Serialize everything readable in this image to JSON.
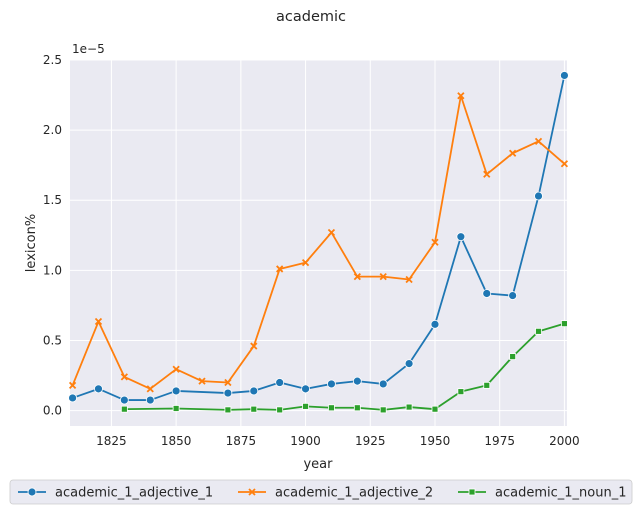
{
  "chart_data": {
    "type": "line",
    "title": "academic",
    "xlabel": "year",
    "ylabel": "lexicon%",
    "y_offset_text": "1e−5",
    "xlim": [
      1809,
      2001
    ],
    "ylim": [
      -0.11,
      2.5
    ],
    "y_multiplier": 1e-05,
    "grid": true,
    "legend_placement": "bottom-center",
    "x_ticks": [
      1825,
      1850,
      1875,
      1900,
      1925,
      1950,
      1975,
      2000
    ],
    "x_tick_labels": [
      "1825",
      "1850",
      "1875",
      "1900",
      "1925",
      "1950",
      "1975",
      "2000"
    ],
    "y_ticks": [
      0.0,
      0.5,
      1.0,
      1.5,
      2.0,
      2.5
    ],
    "y_tick_labels": [
      "0.0",
      "0.5",
      "1.0",
      "1.5",
      "2.0",
      "2.5"
    ],
    "series": [
      {
        "name": "academic_1_adjective_1",
        "color": "#1f77b4",
        "marker": "circle",
        "x": [
          1810,
          1820,
          1830,
          1840,
          1850,
          1870,
          1880,
          1890,
          1900,
          1910,
          1920,
          1930,
          1940,
          1950,
          1960,
          1970,
          1980,
          1990,
          2000
        ],
        "y": [
          0.09,
          0.155,
          0.075,
          0.075,
          0.14,
          0.125,
          0.14,
          0.2,
          0.155,
          0.19,
          0.21,
          0.19,
          0.335,
          0.615,
          1.24,
          0.835,
          0.82,
          1.53,
          2.39
        ]
      },
      {
        "name": "academic_1_adjective_2",
        "color": "#ff7f0e",
        "marker": "x",
        "x": [
          1810,
          1820,
          1830,
          1840,
          1850,
          1860,
          1870,
          1880,
          1890,
          1900,
          1910,
          1920,
          1930,
          1940,
          1950,
          1960,
          1970,
          1980,
          1990,
          2000
        ],
        "y": [
          0.18,
          0.635,
          0.24,
          0.155,
          0.295,
          0.21,
          0.2,
          0.46,
          1.01,
          1.055,
          1.27,
          0.955,
          0.955,
          0.935,
          1.2,
          2.245,
          1.685,
          1.835,
          1.92,
          1.76
        ]
      },
      {
        "name": "academic_1_noun_1",
        "color": "#2ca02c",
        "marker": "square",
        "x": [
          1830,
          1850,
          1870,
          1880,
          1890,
          1900,
          1910,
          1920,
          1930,
          1940,
          1950,
          1960,
          1970,
          1980,
          1990,
          2000
        ],
        "y": [
          0.01,
          0.015,
          0.005,
          0.01,
          0.005,
          0.03,
          0.02,
          0.02,
          0.005,
          0.025,
          0.01,
          0.135,
          0.18,
          0.385,
          0.565,
          0.62
        ]
      }
    ]
  }
}
